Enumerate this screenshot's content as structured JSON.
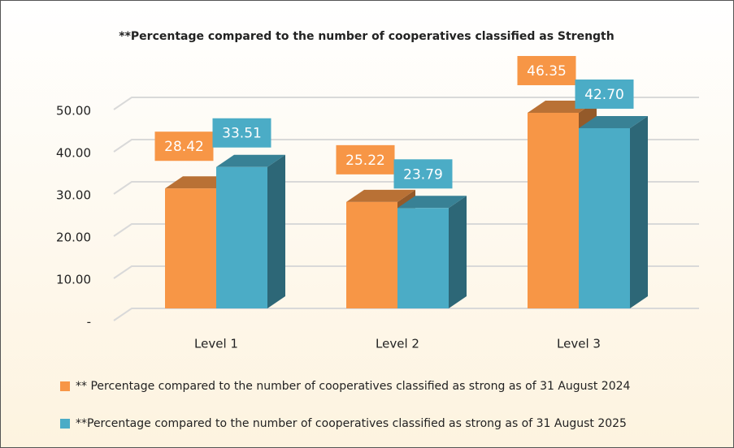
{
  "chart_data": {
    "type": "bar3d",
    "title": "**Percentage compared to the number of cooperatives classified as Strength",
    "categories": [
      "Level 1",
      "Level 2",
      "Level 3"
    ],
    "series": [
      {
        "name": "** Percentage compared to the number of cooperatives classified as strong as of 31 August 2024",
        "color": "#f79646",
        "values": [
          28.42,
          25.22,
          46.35
        ],
        "value_labels": [
          "28.42",
          "25.22",
          "46.35"
        ]
      },
      {
        "name": "**Percentage compared to the number of cooperatives classified as strong as of 31 August 2025",
        "color": "#4bacc6",
        "values": [
          33.51,
          23.79,
          42.7
        ],
        "value_labels": [
          "33.51",
          "23.79",
          "42.70"
        ]
      }
    ],
    "ylim": [
      0,
      50
    ],
    "yticks": [
      {
        "value": 0,
        "label": "-"
      },
      {
        "value": 10,
        "label": "10.00"
      },
      {
        "value": 20,
        "label": "20.00"
      },
      {
        "value": 30,
        "label": "30.00"
      },
      {
        "value": 40,
        "label": "40.00"
      },
      {
        "value": 50,
        "label": "50.00"
      }
    ],
    "grid": true,
    "legend": "bottom"
  }
}
